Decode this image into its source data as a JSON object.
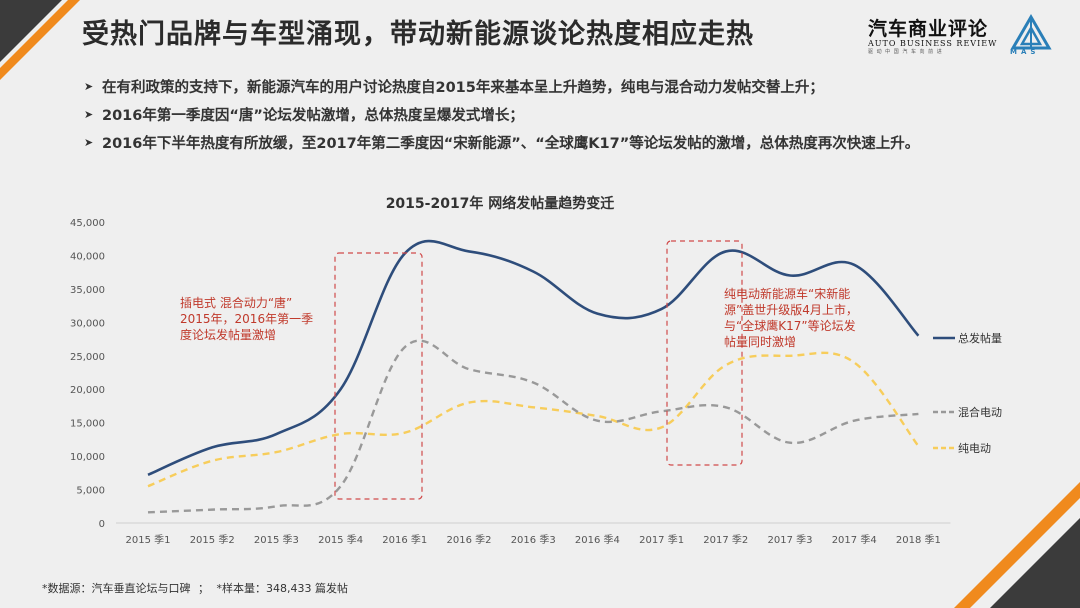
{
  "slide": {
    "title": "受热门品牌与车型涌现，带动新能源谈论热度相应走热",
    "logo_cn": "汽车商业评论",
    "logo_en": "AUTO BUSINESS REVIEW",
    "logo_tag": "驱 动 中 国 汽 车 向 前 进",
    "mas": "MAS",
    "bullets": [
      "在有利政策的支持下，新能源汽车的用户讨论热度自2015年来基本呈上升趋势，纯电与混合动力发帖交替上升；",
      "2016年第一季度因“唐”论坛发帖激增，总体热度呈爆发式增长；",
      "2016年下半年热度有所放缓，至2017年第二季度因“宋新能源”、“全球鹰K17”等论坛发帖的激增，总体热度再次快速上升。"
    ],
    "footer_source": "*数据源：汽车垂直论坛与口碑",
    "footer_sep": "；",
    "footer_sample": "*样本量：348,433 篇发帖"
  },
  "chart_data": {
    "type": "line",
    "title": "2015-2017年 网络发帖量趋势变迁",
    "categories": [
      "2015 季1",
      "2015 季2",
      "2015 季3",
      "2015 季4",
      "2016 季1",
      "2016 季2",
      "2016 季3",
      "2016 季4",
      "2017 季1",
      "2017 季2",
      "2017 季3",
      "2017 季4",
      "2018 季1"
    ],
    "ylim": [
      0,
      45000
    ],
    "yticks": [
      0,
      5000,
      10000,
      15000,
      20000,
      25000,
      30000,
      35000,
      40000,
      45000
    ],
    "ytick_labels": [
      "0",
      "5,000",
      "10,000",
      "15,000",
      "20,000",
      "25,000",
      "30,000",
      "35,000",
      "40,000",
      "45,000"
    ],
    "grid": false,
    "legend_position": "right",
    "series": [
      {
        "name": "总发帖量",
        "color": "#2e4d7b",
        "dash": "solid",
        "values": [
          7200,
          11300,
          13300,
          20000,
          40300,
          40600,
          37600,
          31300,
          32000,
          40600,
          37000,
          38600,
          28000
        ]
      },
      {
        "name": "混合电动",
        "color": "#999999",
        "dash": "dashed",
        "values": [
          1600,
          2000,
          2500,
          5500,
          26300,
          23000,
          21000,
          15300,
          16700,
          17300,
          12000,
          15300,
          16300
        ]
      },
      {
        "name": "纯电动",
        "color": "#f7cd5b",
        "dash": "dashed",
        "values": [
          5500,
          9300,
          10600,
          13300,
          13500,
          18000,
          17300,
          16000,
          14300,
          23600,
          25000,
          24000,
          11500
        ]
      }
    ],
    "annotations": [
      {
        "text": "插电式 混合动力“唐”\n2015年，2016年第一季\n度论坛发帖量激增",
        "color": "#c0392b"
      },
      {
        "text": "纯电动新能源车“宋新能\n源”盖世升级版4月上市，\n与“全球鹰K17”等论坛发\n帖量同时激增",
        "color": "#c0392b"
      }
    ]
  }
}
